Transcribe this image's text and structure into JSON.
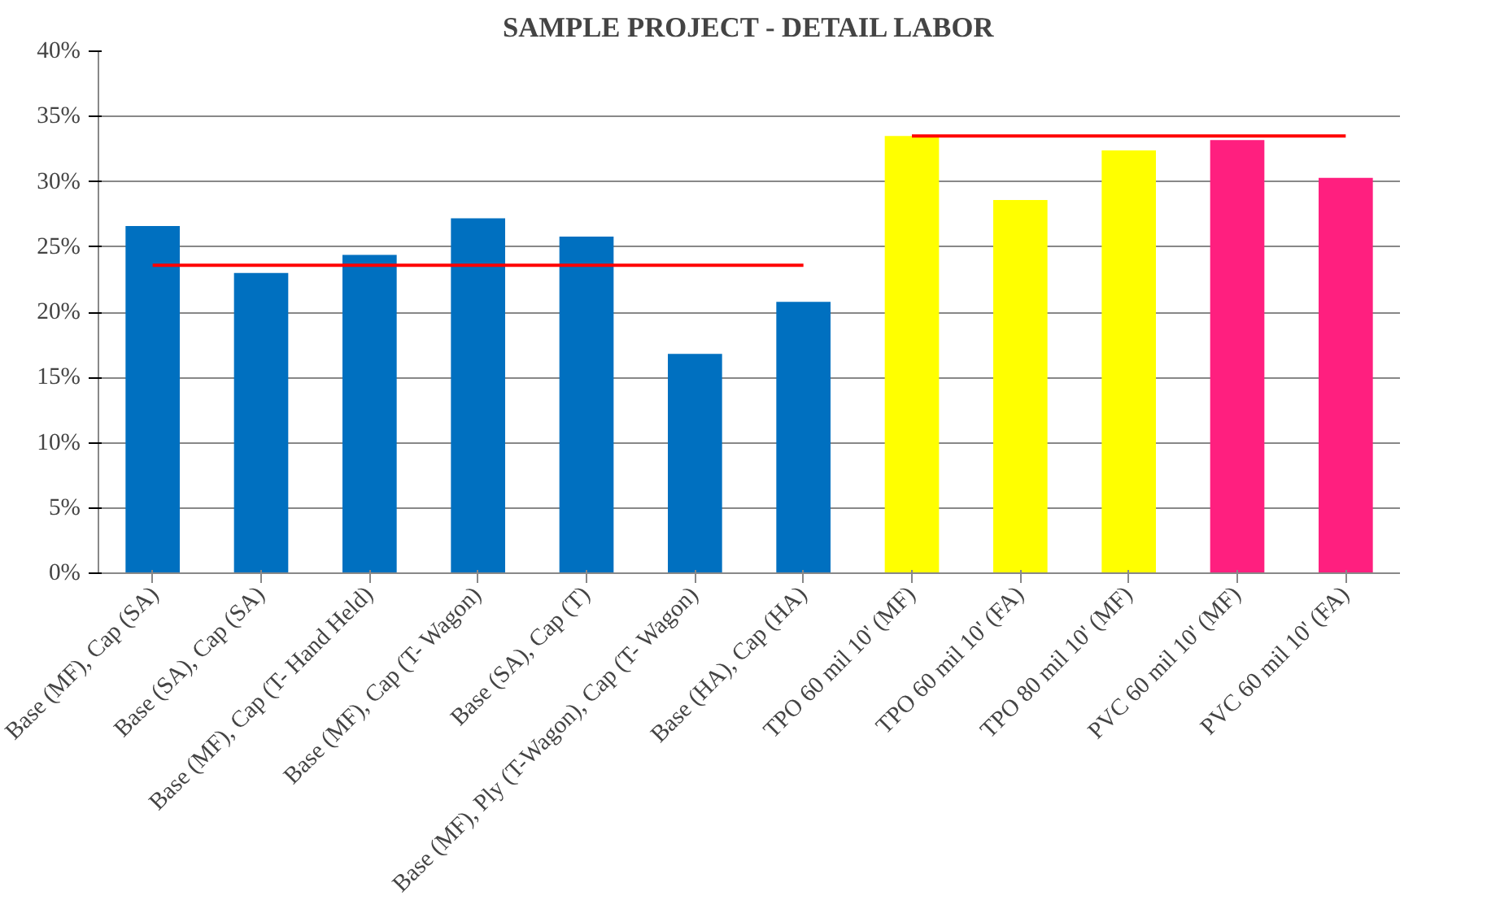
{
  "chart_data": {
    "type": "bar",
    "title": "SAMPLE PROJECT - DETAIL LABOR",
    "categories": [
      "Base (MF), Cap (SA)",
      "Base (SA), Cap (SA)",
      "Base (MF), Cap (T- Hand Held)",
      "Base (MF), Cap (T- Wagon)",
      "Base (SA), Cap (T)",
      "Base (MF), Ply (T-Wagon), Cap (T- Wagon)",
      "Base (HA), Cap (HA)",
      "TPO 60 mil 10' (MF)",
      "TPO 60 mil 10' (FA)",
      "TPO 80 mil 10' (MF)",
      "PVC 60 mil 10' (MF)",
      "PVC 60 mil 10' (FA)"
    ],
    "series": [
      {
        "values": [
          26.6,
          23.0,
          24.4,
          27.2,
          25.8,
          16.8,
          20.8,
          33.5,
          28.6,
          32.4,
          33.2,
          30.3
        ],
        "colors": [
          "#0070c0",
          "#0070c0",
          "#0070c0",
          "#0070c0",
          "#0070c0",
          "#0070c0",
          "#0070c0",
          "#ffff00",
          "#ffff00",
          "#ffff00",
          "#ff1f7f",
          "#ff1f7f"
        ]
      },
      {
        "type": "line",
        "color": "#ff0000",
        "values": [
          23.6,
          23.6,
          23.6,
          23.6,
          23.6,
          23.6,
          23.6,
          null,
          null,
          null,
          null,
          null
        ]
      },
      {
        "type": "line",
        "color": "#ff0000",
        "values": [
          null,
          null,
          null,
          null,
          null,
          null,
          null,
          33.5,
          33.5,
          33.5,
          33.5,
          33.5
        ]
      }
    ],
    "ylim": [
      0,
      40
    ],
    "yticks": [
      {
        "value": 0,
        "label": "0%"
      },
      {
        "value": 5,
        "label": "5%"
      },
      {
        "value": 10,
        "label": "10%"
      },
      {
        "value": 15,
        "label": "15%"
      },
      {
        "value": 20,
        "label": "20%"
      },
      {
        "value": 25,
        "label": "25%"
      },
      {
        "value": 30,
        "label": "30%"
      },
      {
        "value": 35,
        "label": "35%"
      },
      {
        "value": 40,
        "label": "40%"
      }
    ],
    "grid": "y"
  }
}
